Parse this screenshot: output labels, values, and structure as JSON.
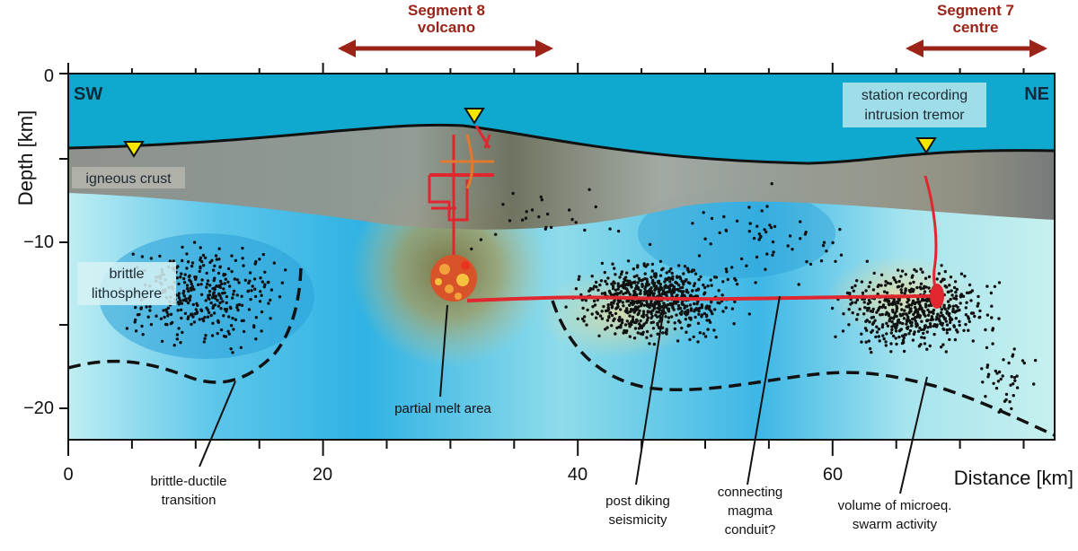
{
  "segments": {
    "seg8": {
      "line1": "Segment 8",
      "line2": "volcano"
    },
    "seg7": {
      "line1": "Segment 7",
      "line2": "centre"
    }
  },
  "directions": {
    "sw": "SW",
    "ne": "NE"
  },
  "axes": {
    "y_title": "Depth [km]",
    "x_title": "Distance [km]",
    "y_ticks": [
      "0",
      "−10",
      "−20"
    ],
    "x_ticks": [
      "0",
      "20",
      "40",
      "60"
    ]
  },
  "labels": {
    "station_line1": "station recording",
    "station_line2": "intrusion tremor",
    "crust": "igneous crust",
    "brittle_line1": "brittle",
    "brittle_line2": "lithosphere",
    "partial_melt": "partial melt area",
    "bdt_line1": "brittle-ductile",
    "bdt_line2": "transition",
    "post_line1": "post diking",
    "post_line2": "seismicity",
    "conduit_line1": "connecting",
    "conduit_line2": "magma",
    "conduit_line3": "conduit?",
    "volume_line1": "volume of microeq.",
    "volume_line2": "swarm activity"
  },
  "colors": {
    "water": "#0fa9cf",
    "crust": "#8e8e86",
    "mantle_light": "#bfeef2",
    "mantle_blue": "#39b8e8",
    "melt": "#d8532a",
    "magma": "#e0262e",
    "arrow": "#9b2317",
    "station": "#f5e600"
  }
}
